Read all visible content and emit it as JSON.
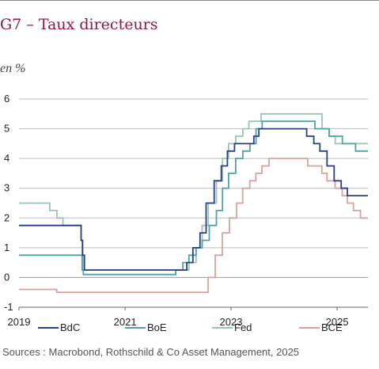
{
  "title": "G7 – Taux directeurs",
  "unit": "en %",
  "source": "Sources : Macrobond, Rothschild & Co Asset Management, 2025",
  "chart_data": {
    "type": "line",
    "title": "G7 – Taux directeurs",
    "ylabel": "en %",
    "ylim": [
      -1,
      6
    ],
    "xlim": [
      "2019-01-01",
      "2025-08-01"
    ],
    "y_ticks": [
      "-1",
      "0",
      "1",
      "2",
      "3",
      "4",
      "5",
      "6"
    ],
    "x_ticks": [
      "2019",
      "2021",
      "2023",
      "2025"
    ],
    "grid": true,
    "legend": "bottom",
    "series": [
      {
        "name": "BdC",
        "color": "#2b3f85",
        "x": [
          "2019-01-01",
          "2020-03-04",
          "2020-03-13",
          "2020-03-27",
          "2022-03-02",
          "2022-04-13",
          "2022-06-01",
          "2022-07-13",
          "2022-09-07",
          "2022-10-26",
          "2022-12-07",
          "2023-01-25",
          "2023-06-07",
          "2023-07-12",
          "2024-06-05",
          "2024-07-24",
          "2024-09-04",
          "2024-10-23",
          "2024-12-11",
          "2025-01-29",
          "2025-03-12",
          "2025-08-01"
        ],
        "y": [
          1.75,
          1.25,
          0.75,
          0.25,
          0.5,
          1.0,
          1.5,
          2.5,
          3.25,
          3.75,
          4.25,
          4.5,
          4.75,
          5.0,
          4.75,
          4.5,
          4.25,
          3.75,
          3.25,
          3.0,
          2.75,
          2.75
        ]
      },
      {
        "name": "BoE",
        "color": "#4fa3a3",
        "x": [
          "2019-01-01",
          "2020-03-11",
          "2020-03-19",
          "2021-12-16",
          "2022-02-03",
          "2022-03-17",
          "2022-05-05",
          "2022-06-16",
          "2022-08-04",
          "2022-09-22",
          "2022-11-03",
          "2022-12-15",
          "2023-02-02",
          "2023-03-23",
          "2023-05-11",
          "2023-06-22",
          "2023-08-03",
          "2024-08-01",
          "2024-11-07",
          "2025-02-06",
          "2025-05-08",
          "2025-08-01"
        ],
        "y": [
          0.75,
          0.25,
          0.1,
          0.25,
          0.5,
          0.75,
          1.0,
          1.25,
          1.75,
          2.25,
          3.0,
          3.5,
          4.0,
          4.25,
          4.5,
          5.0,
          5.25,
          5.0,
          4.75,
          4.5,
          4.25,
          4.25
        ]
      },
      {
        "name": "Fed",
        "color": "#9cc4b8",
        "x": [
          "2019-01-01",
          "2019-08-01",
          "2019-09-19",
          "2019-10-31",
          "2020-03-04",
          "2020-03-16",
          "2022-03-17",
          "2022-05-05",
          "2022-06-16",
          "2022-07-28",
          "2022-09-22",
          "2022-11-03",
          "2022-12-15",
          "2023-02-02",
          "2023-03-23",
          "2023-05-04",
          "2023-07-27",
          "2024-09-19",
          "2024-11-08",
          "2024-12-19",
          "2025-08-01"
        ],
        "y": [
          2.5,
          2.25,
          2.0,
          1.75,
          1.25,
          0.25,
          0.5,
          1.0,
          1.75,
          2.5,
          3.25,
          4.0,
          4.5,
          4.75,
          5.0,
          5.25,
          5.5,
          5.0,
          4.75,
          4.5,
          4.5
        ]
      },
      {
        "name": "BCE",
        "color": "#d4a5a0",
        "x": [
          "2019-01-01",
          "2019-09-18",
          "2022-07-27",
          "2022-09-14",
          "2022-11-02",
          "2022-12-21",
          "2023-02-08",
          "2023-03-22",
          "2023-05-10",
          "2023-06-21",
          "2023-08-02",
          "2023-09-20",
          "2024-06-12",
          "2024-09-18",
          "2024-10-23",
          "2024-12-18",
          "2025-02-05",
          "2025-03-12",
          "2025-04-23",
          "2025-06-11",
          "2025-08-01"
        ],
        "y": [
          -0.4,
          -0.5,
          0.0,
          0.75,
          1.5,
          2.0,
          2.5,
          3.0,
          3.25,
          3.5,
          3.75,
          4.0,
          3.75,
          3.5,
          3.25,
          3.0,
          2.75,
          2.5,
          2.25,
          2.0,
          2.0
        ]
      }
    ]
  }
}
